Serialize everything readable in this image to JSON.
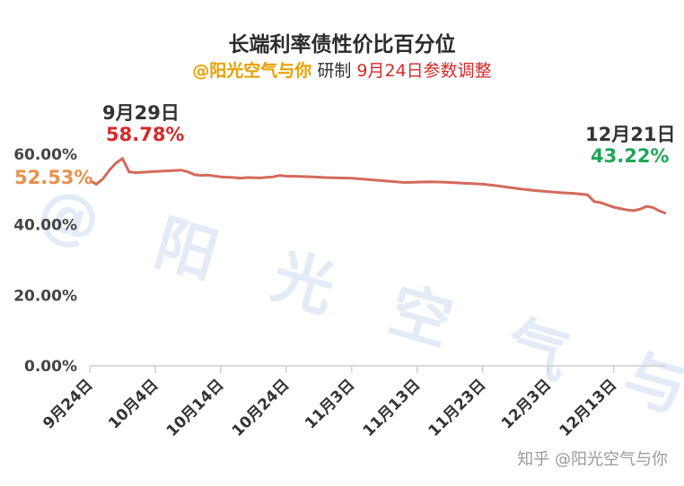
{
  "header": {
    "title": "长端利率债性价比百分位",
    "author": "@阳光空气与你",
    "made": "研制",
    "note": "9月24日参数调整"
  },
  "watermark": "@ 阳 光 空 气 与 你",
  "footer": "知乎 @阳光空气与你",
  "annotations": {
    "start_value": "52.53%",
    "peak_date": "9月29日",
    "peak_value": "58.78%",
    "end_date": "12月21日",
    "end_value": "43.22%"
  },
  "colors": {
    "line": "#d46a5a",
    "start_value": "#e8914e",
    "peak_value": "#d42a2a",
    "end_value": "#1fa55a"
  },
  "chart_data": {
    "type": "line",
    "title": "长端利率债性价比百分位",
    "xlabel": "",
    "ylabel": "",
    "ylim": [
      0,
      60
    ],
    "yticks": [
      "0.00%",
      "20.00%",
      "40.00%",
      "60.00%"
    ],
    "ytick_values": [
      0,
      20,
      40,
      60
    ],
    "xticks": [
      "9月24日",
      "10月4日",
      "10月14日",
      "10月24日",
      "11月3日",
      "11月13日",
      "11月23日",
      "12月3日",
      "12月13日"
    ],
    "xtick_days": [
      0,
      10,
      20,
      30,
      40,
      50,
      60,
      70,
      80
    ],
    "x_days_range": [
      0,
      88
    ],
    "x_unit": "days since 9月24日",
    "grid": false,
    "series": [
      {
        "x": [
          0,
          1,
          2,
          3,
          4,
          5,
          6,
          7,
          8,
          10,
          12,
          14,
          15,
          16,
          17,
          18,
          20,
          22,
          23,
          24,
          26,
          28,
          29,
          30,
          32,
          34,
          36,
          38,
          40,
          42,
          44,
          46,
          48,
          50,
          52,
          54,
          56,
          58,
          60,
          62,
          64,
          66,
          68,
          70,
          72,
          74,
          76,
          77,
          78,
          80,
          82,
          83,
          84,
          85,
          86,
          87,
          88
        ],
        "y": [
          52.53,
          51.5,
          53.0,
          55.5,
          57.5,
          58.78,
          55.0,
          54.8,
          54.9,
          55.1,
          55.3,
          55.5,
          55.0,
          54.2,
          54.0,
          54.1,
          53.6,
          53.4,
          53.2,
          53.4,
          53.3,
          53.6,
          54.0,
          53.8,
          53.7,
          53.6,
          53.4,
          53.3,
          53.2,
          52.9,
          52.6,
          52.3,
          52.0,
          52.1,
          52.2,
          52.1,
          51.9,
          51.7,
          51.5,
          51.1,
          50.6,
          50.1,
          49.7,
          49.4,
          49.1,
          48.9,
          48.5,
          46.6,
          46.3,
          45.0,
          44.2,
          44.0,
          44.4,
          45.2,
          44.9,
          43.9,
          43.22
        ]
      }
    ]
  }
}
